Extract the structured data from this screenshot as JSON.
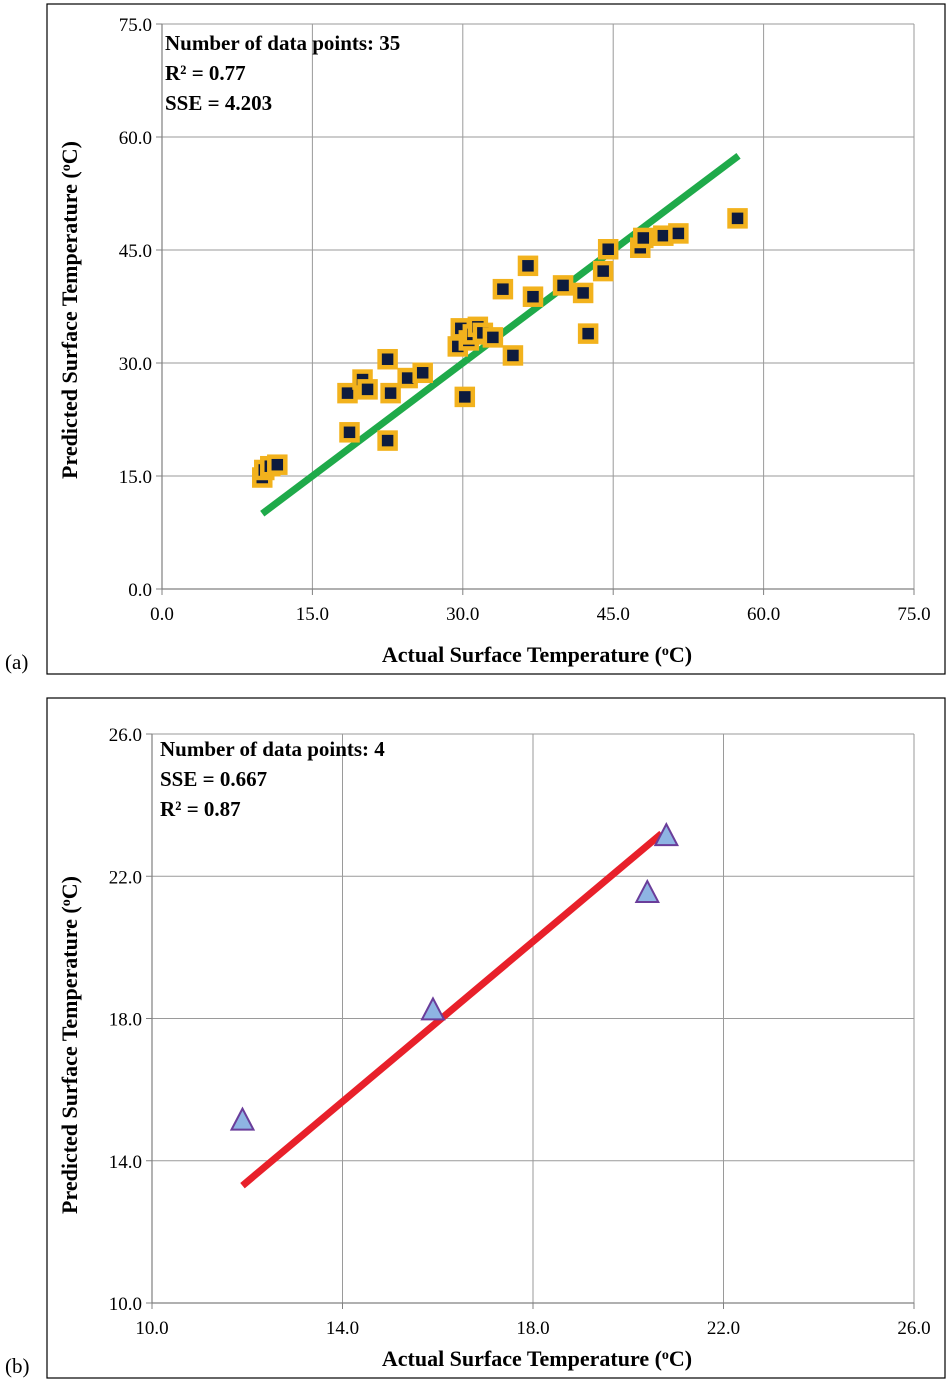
{
  "chart_data": [
    {
      "type": "scatter",
      "panel_label": "(a)",
      "xlabel": "Actual Surface Temperature (",
      "xlabel_sup": "o",
      "xlabel_end": "C)",
      "ylabel": "Predicted Surface Temperature (",
      "ylabel_sup": "o",
      "ylabel_end": "C)",
      "xlim": [
        0,
        75
      ],
      "ylim": [
        0,
        75
      ],
      "xticks": [
        "0.0",
        "15.0",
        "30.0",
        "45.0",
        "60.0",
        "75.0"
      ],
      "yticks": [
        "0.0",
        "15.0",
        "30.0",
        "45.0",
        "60.0",
        "75.0"
      ],
      "grid": true,
      "annotations": [
        "Number of data points: 35",
        "R² = 0.77",
        "SSE = 4.203"
      ],
      "marker": {
        "shape": "square",
        "fill": "#0d1b3e",
        "stroke": "#f2b21d"
      },
      "line_color": "#1faa4a",
      "line": {
        "x": [
          10,
          57.5
        ],
        "y": [
          10,
          57.5
        ]
      },
      "points": {
        "x": [
          10,
          10.2,
          10.8,
          11.5,
          18.5,
          18.7,
          20,
          20.5,
          22.5,
          22.5,
          22.8,
          24.5,
          26,
          29.5,
          29.8,
          30.2,
          30.6,
          31,
          31.5,
          32,
          33,
          34,
          35,
          36.5,
          37,
          40,
          42,
          42.5,
          44,
          44.5,
          47.7,
          48,
          50,
          51.5,
          57.4
        ],
        "y": [
          14.8,
          15.8,
          16.3,
          16.5,
          26,
          20.8,
          27.8,
          26.5,
          30.5,
          19.7,
          26,
          28,
          28.7,
          32.2,
          34.6,
          25.5,
          33,
          33.8,
          34.8,
          34,
          33.4,
          39.8,
          31,
          42.9,
          38.8,
          40.3,
          39.3,
          33.9,
          42.2,
          45.1,
          45.3,
          46.6,
          46.9,
          47.2,
          49.2
        ]
      }
    },
    {
      "type": "scatter",
      "panel_label": "(b)",
      "xlabel": "Actual Surface Temperature (",
      "xlabel_sup": "o",
      "xlabel_end": "C)",
      "ylabel": "Predicted Surface Temperature (",
      "ylabel_sup": "o",
      "ylabel_end": "C)",
      "xlim": [
        10,
        26
      ],
      "ylim": [
        10,
        26
      ],
      "xticks": [
        "10.0",
        "14.0",
        "18.0",
        "22.0",
        "26.0"
      ],
      "yticks": [
        "10.0",
        "14.0",
        "18.0",
        "22.0",
        "26.0"
      ],
      "grid": true,
      "annotations": [
        "Number of data points: 4",
        "SSE = 0.667",
        "R² = 0.87"
      ],
      "marker": {
        "shape": "triangle",
        "fill": "#8eb4e3",
        "stroke": "#6a3d9a"
      },
      "line_color": "#e8202a",
      "line": {
        "x": [
          11.9,
          20.7
        ],
        "y": [
          13.3,
          23.2
        ]
      },
      "points": {
        "x": [
          11.9,
          15.9,
          20.4,
          20.8
        ],
        "y": [
          15.1,
          18.2,
          21.5,
          23.1
        ]
      }
    }
  ]
}
